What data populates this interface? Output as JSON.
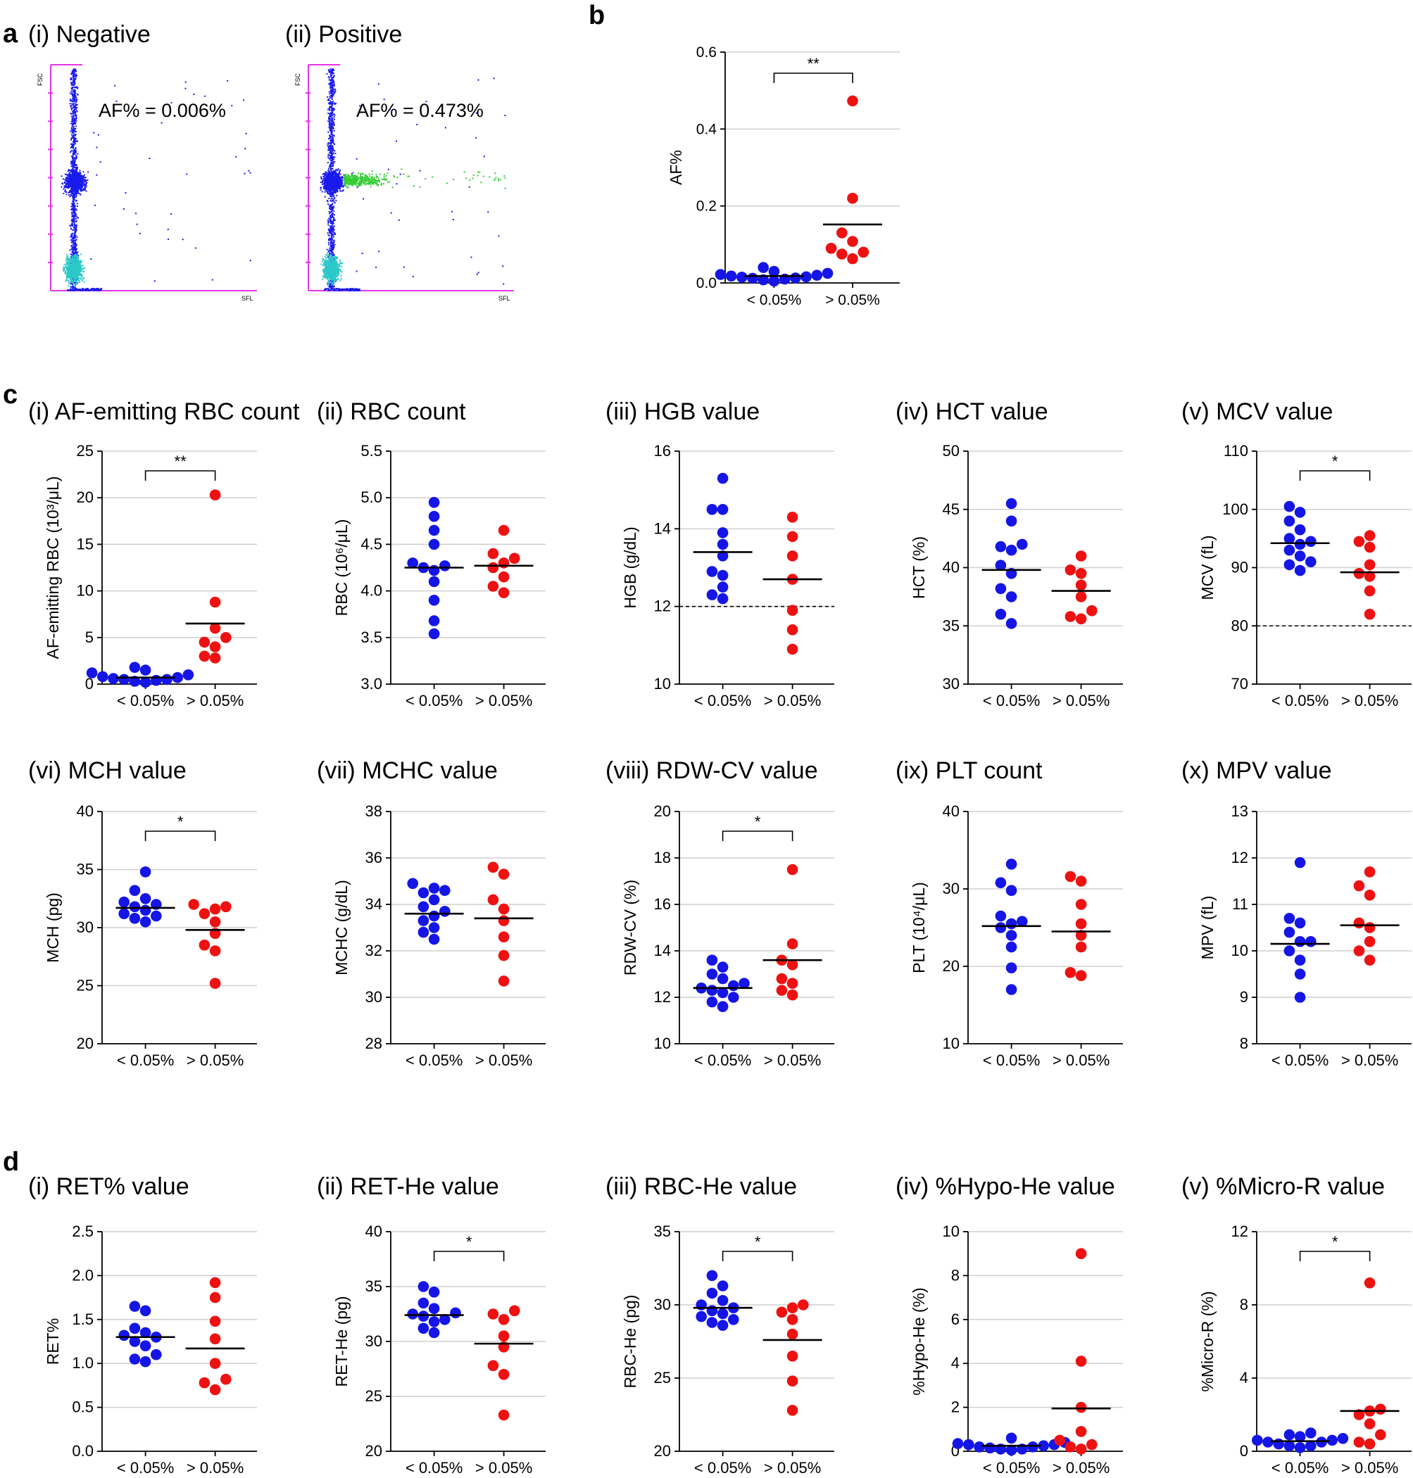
{
  "figure": {
    "panel_letters": [
      "a",
      "b",
      "c",
      "d"
    ]
  },
  "colors": {
    "group_low": "#1515e6",
    "group_high": "#ee1111",
    "cyto_blue": "#1a1aee",
    "cyto_cyan": "#2bc8c8",
    "cyto_green": "#33cc33",
    "cyto_axis": "#e633e6"
  },
  "cytograms": [
    {
      "title": "(i) Negative",
      "annotation": "AF% = 0.006%",
      "ylabel": "FSC",
      "xlabel": "SFL",
      "positive": false
    },
    {
      "title": "(ii) Positive",
      "annotation": "AF% = 0.473%",
      "ylabel": "FSC",
      "xlabel": "SFL",
      "positive": true
    }
  ],
  "chart_data": [
    {
      "id": "b",
      "type": "scatter",
      "title": "",
      "ylabel": "AF%",
      "categories": [
        "< 0.05%",
        "> 0.05%"
      ],
      "ylim": [
        0.0,
        0.6
      ],
      "yticks": [
        "0.0",
        "0.2",
        "0.4",
        "0.6"
      ],
      "tick_step": 0.2,
      "series": [
        {
          "name": "< 0.05%",
          "values": [
            0.005,
            0.008,
            0.01,
            0.012,
            0.013,
            0.015,
            0.016,
            0.018,
            0.02,
            0.022,
            0.025,
            0.03,
            0.04
          ],
          "mean": 0.018
        },
        {
          "name": "> 0.05%",
          "values": [
            0.063,
            0.075,
            0.08,
            0.09,
            0.108,
            0.13,
            0.22,
            0.473
          ],
          "mean": 0.152
        }
      ],
      "significance": "**",
      "ref_line": null
    },
    {
      "id": "c-i",
      "type": "scatter",
      "title": "(i) AF-emitting RBC count",
      "ylabel": "AF-emitting RBC (10³/μL)",
      "categories": [
        "< 0.05%",
        "> 0.05%"
      ],
      "ylim": [
        0,
        25
      ],
      "yticks": [
        "0",
        "5",
        "10",
        "15",
        "20",
        "25"
      ],
      "tick_step": 5,
      "series": [
        {
          "name": "< 0.05%",
          "values": [
            0.2,
            0.3,
            0.4,
            0.5,
            0.5,
            0.6,
            0.7,
            0.8,
            1.0,
            1.2,
            1.5,
            1.8
          ],
          "mean": 0.7
        },
        {
          "name": "> 0.05%",
          "values": [
            2.8,
            3.0,
            4.0,
            4.5,
            5.0,
            6.0,
            8.8,
            20.3
          ],
          "mean": 6.5
        }
      ],
      "significance": "**",
      "ref_line": null
    },
    {
      "id": "c-ii",
      "type": "scatter",
      "title": "(ii) RBC count",
      "ylabel": "RBC (10⁶/μL)",
      "categories": [
        "< 0.05%",
        "> 0.05%"
      ],
      "ylim": [
        3.0,
        5.5
      ],
      "yticks": [
        "3.0",
        "3.5",
        "4.0",
        "4.5",
        "5.0",
        "5.5"
      ],
      "tick_step": 0.5,
      "series": [
        {
          "name": "< 0.05%",
          "values": [
            3.54,
            3.68,
            3.9,
            4.1,
            4.22,
            4.25,
            4.27,
            4.3,
            4.5,
            4.65,
            4.8,
            4.95
          ],
          "mean": 4.25
        },
        {
          "name": "> 0.05%",
          "values": [
            3.98,
            4.05,
            4.15,
            4.25,
            4.3,
            4.35,
            4.4,
            4.65
          ],
          "mean": 4.27
        }
      ],
      "significance": "",
      "ref_line": null
    },
    {
      "id": "c-iii",
      "type": "scatter",
      "title": "(iii) HGB value",
      "ylabel": "HGB (g/dL)",
      "categories": [
        "< 0.05%",
        "> 0.05%"
      ],
      "ylim": [
        10,
        16
      ],
      "yticks": [
        "10",
        "12",
        "14",
        "16"
      ],
      "tick_step": 2,
      "series": [
        {
          "name": "< 0.05%",
          "values": [
            12.2,
            12.3,
            12.5,
            12.8,
            12.9,
            13.3,
            13.6,
            13.9,
            14.5,
            14.5,
            15.3
          ],
          "mean": 13.4
        },
        {
          "name": "> 0.05%",
          "values": [
            10.9,
            11.4,
            11.9,
            12.7,
            13.3,
            13.8,
            14.3
          ],
          "mean": 12.7
        }
      ],
      "significance": "",
      "ref_line": 12
    },
    {
      "id": "c-iv",
      "type": "scatter",
      "title": "(iv) HCT value",
      "ylabel": "HCT (%)",
      "categories": [
        "< 0.05%",
        "> 0.05%"
      ],
      "ylim": [
        30,
        50
      ],
      "yticks": [
        "30",
        "35",
        "40",
        "45",
        "50"
      ],
      "tick_step": 5,
      "series": [
        {
          "name": "< 0.05%",
          "values": [
            35.2,
            36.0,
            37.5,
            38.2,
            39.5,
            40.2,
            41.5,
            41.8,
            42.0,
            44.0,
            45.5
          ],
          "mean": 39.8
        },
        {
          "name": "> 0.05%",
          "values": [
            35.6,
            35.8,
            36.3,
            37.5,
            38.5,
            39.5,
            39.8,
            41.0
          ],
          "mean": 38.0
        }
      ],
      "significance": "",
      "ref_line": null
    },
    {
      "id": "c-v",
      "type": "scatter",
      "title": "(v) MCV value",
      "ylabel": "MCV (fL)",
      "categories": [
        "< 0.05%",
        "> 0.05%"
      ],
      "ylim": [
        70,
        110
      ],
      "yticks": [
        "70",
        "80",
        "90",
        "100",
        "110"
      ],
      "tick_step": 10,
      "series": [
        {
          "name": "< 0.05%",
          "values": [
            89.5,
            90.5,
            91.0,
            92.0,
            93.0,
            94.0,
            94.5,
            95.0,
            96.5,
            98.0,
            99.5,
            100.5
          ],
          "mean": 94.2
        },
        {
          "name": "> 0.05%",
          "values": [
            82.0,
            86.0,
            88.5,
            89.0,
            90.5,
            93.5,
            94.5,
            95.5
          ],
          "mean": 89.2
        }
      ],
      "significance": "*",
      "ref_line": 80
    },
    {
      "id": "c-vi",
      "type": "scatter",
      "title": "(vi) MCH value",
      "ylabel": "MCH (pg)",
      "categories": [
        "< 0.05%",
        "> 0.05%"
      ],
      "ylim": [
        20,
        40
      ],
      "yticks": [
        "20",
        "25",
        "30",
        "35",
        "40"
      ],
      "tick_step": 5,
      "series": [
        {
          "name": "< 0.05%",
          "values": [
            30.5,
            30.8,
            31.0,
            31.2,
            31.5,
            31.8,
            32.0,
            32.2,
            32.5,
            33.2,
            34.8
          ],
          "mean": 31.7
        },
        {
          "name": "> 0.05%",
          "values": [
            25.2,
            28.0,
            28.5,
            29.5,
            30.5,
            31.2,
            31.6,
            31.8,
            32.0
          ],
          "mean": 29.8
        }
      ],
      "significance": "*",
      "ref_line": null
    },
    {
      "id": "c-vii",
      "type": "scatter",
      "title": "(vii) MCHC value",
      "ylabel": "MCHC (g/dL)",
      "categories": [
        "< 0.05%",
        "> 0.05%"
      ],
      "ylim": [
        28,
        38
      ],
      "yticks": [
        "28",
        "30",
        "32",
        "34",
        "36",
        "38"
      ],
      "tick_step": 2,
      "series": [
        {
          "name": "< 0.05%",
          "values": [
            32.5,
            32.8,
            33.0,
            33.3,
            33.5,
            33.7,
            33.9,
            34.2,
            34.5,
            34.6,
            34.7,
            34.9
          ],
          "mean": 33.6
        },
        {
          "name": "> 0.05%",
          "values": [
            30.7,
            31.8,
            32.6,
            33.3,
            33.8,
            34.2,
            35.3,
            35.6
          ],
          "mean": 33.4
        }
      ],
      "significance": "",
      "ref_line": null
    },
    {
      "id": "c-viii",
      "type": "scatter",
      "title": "(viii) RDW-CV value",
      "ylabel": "RDW-CV (%)",
      "categories": [
        "< 0.05%",
        "> 0.05%"
      ],
      "ylim": [
        10,
        20
      ],
      "yticks": [
        "10",
        "12",
        "14",
        "16",
        "18",
        "20"
      ],
      "tick_step": 2,
      "series": [
        {
          "name": "< 0.05%",
          "values": [
            11.6,
            11.8,
            12.0,
            12.2,
            12.3,
            12.4,
            12.5,
            12.6,
            12.8,
            13.0,
            13.3,
            13.6
          ],
          "mean": 12.4
        },
        {
          "name": "> 0.05%",
          "values": [
            12.1,
            12.3,
            12.6,
            12.8,
            13.4,
            13.6,
            14.3,
            17.5
          ],
          "mean": 13.6
        }
      ],
      "significance": "*",
      "ref_line": null
    },
    {
      "id": "c-ix",
      "type": "scatter",
      "title": "(ix) PLT count",
      "ylabel": "PLT (10⁴/μL)",
      "categories": [
        "< 0.05%",
        "> 0.05%"
      ],
      "ylim": [
        10,
        40
      ],
      "yticks": [
        "10",
        "20",
        "30",
        "40"
      ],
      "tick_step": 10,
      "series": [
        {
          "name": "< 0.05%",
          "values": [
            17.0,
            19.8,
            22.5,
            24.0,
            25.0,
            25.5,
            25.8,
            26.5,
            29.8,
            30.8,
            33.2
          ],
          "mean": 25.2
        },
        {
          "name": "> 0.05%",
          "values": [
            18.8,
            19.2,
            22.5,
            24.0,
            25.5,
            28.0,
            31.0,
            31.6
          ],
          "mean": 24.5
        }
      ],
      "significance": "",
      "ref_line": null
    },
    {
      "id": "c-x",
      "type": "scatter",
      "title": "(x) MPV value",
      "ylabel": "MPV (fL)",
      "categories": [
        "< 0.05%",
        "> 0.05%"
      ],
      "ylim": [
        8,
        13
      ],
      "yticks": [
        "8",
        "9",
        "10",
        "11",
        "12",
        "13"
      ],
      "tick_step": 1,
      "series": [
        {
          "name": "< 0.05%",
          "values": [
            9.0,
            9.5,
            9.8,
            10.0,
            10.2,
            10.2,
            10.4,
            10.6,
            10.7,
            11.9
          ],
          "mean": 10.15
        },
        {
          "name": "> 0.05%",
          "values": [
            9.8,
            10.0,
            10.2,
            10.5,
            10.6,
            11.2,
            11.4,
            11.7
          ],
          "mean": 10.55
        }
      ],
      "significance": "",
      "ref_line": null
    },
    {
      "id": "d-i",
      "type": "scatter",
      "title": "(i) RET% value",
      "ylabel": "RET%",
      "categories": [
        "< 0.05%",
        "> 0.05%"
      ],
      "ylim": [
        0.0,
        2.5
      ],
      "yticks": [
        "0.0",
        "0.5",
        "1.0",
        "1.5",
        "2.0",
        "2.5"
      ],
      "tick_step": 0.5,
      "series": [
        {
          "name": "< 0.05%",
          "values": [
            1.02,
            1.05,
            1.1,
            1.2,
            1.25,
            1.3,
            1.32,
            1.35,
            1.4,
            1.6,
            1.65
          ],
          "mean": 1.3
        },
        {
          "name": "> 0.05%",
          "values": [
            0.7,
            0.78,
            0.82,
            1.0,
            1.28,
            1.48,
            1.75,
            1.92
          ],
          "mean": 1.17
        }
      ],
      "significance": "",
      "ref_line": null
    },
    {
      "id": "d-ii",
      "type": "scatter",
      "title": "(ii) RET-He value",
      "ylabel": "RET-He (pg)",
      "categories": [
        "< 0.05%",
        "> 0.05%"
      ],
      "ylim": [
        20,
        40
      ],
      "yticks": [
        "20",
        "25",
        "30",
        "35",
        "40"
      ],
      "tick_step": 5,
      "series": [
        {
          "name": "< 0.05%",
          "values": [
            30.8,
            31.2,
            31.8,
            32.0,
            32.3,
            32.5,
            32.6,
            33.0,
            33.5,
            34.5,
            35.0
          ],
          "mean": 32.4
        },
        {
          "name": "> 0.05%",
          "values": [
            23.3,
            27.0,
            27.8,
            29.5,
            30.5,
            32.0,
            32.5,
            32.8
          ],
          "mean": 29.8
        }
      ],
      "significance": "*",
      "ref_line": null
    },
    {
      "id": "d-iii",
      "type": "scatter",
      "title": "(iii) RBC-He value",
      "ylabel": "RBC-He (pg)",
      "categories": [
        "< 0.05%",
        "> 0.05%"
      ],
      "ylim": [
        20,
        35
      ],
      "yticks": [
        "20",
        "25",
        "30",
        "35"
      ],
      "tick_step": 5,
      "series": [
        {
          "name": "< 0.05%",
          "values": [
            28.6,
            28.8,
            29.0,
            29.2,
            29.4,
            29.6,
            29.8,
            30.0,
            30.3,
            30.8,
            31.3,
            32.0
          ],
          "mean": 29.8
        },
        {
          "name": "> 0.05%",
          "values": [
            22.8,
            24.8,
            26.5,
            28.0,
            29.0,
            29.5,
            29.8,
            30.0
          ],
          "mean": 27.6
        }
      ],
      "significance": "*",
      "ref_line": null
    },
    {
      "id": "d-iv",
      "type": "scatter",
      "title": "(iv) %Hypo-He value",
      "ylabel": "%Hypo-He (%)",
      "categories": [
        "< 0.05%",
        "> 0.05%"
      ],
      "ylim": [
        0,
        10
      ],
      "yticks": [
        "0",
        "2",
        "4",
        "6",
        "8",
        "10"
      ],
      "tick_step": 2,
      "series": [
        {
          "name": "< 0.05%",
          "values": [
            0.05,
            0.1,
            0.1,
            0.15,
            0.2,
            0.2,
            0.25,
            0.3,
            0.3,
            0.35,
            0.4,
            0.6
          ],
          "mean": 0.25
        },
        {
          "name": "> 0.05%",
          "values": [
            0.1,
            0.2,
            0.3,
            0.5,
            0.9,
            2.0,
            4.1,
            9.0
          ],
          "mean": 1.95
        }
      ],
      "significance": "",
      "ref_line": null
    },
    {
      "id": "d-v",
      "type": "scatter",
      "title": "(v) %Micro-R value",
      "ylabel": "%Micro-R (%)",
      "categories": [
        "< 0.05%",
        "> 0.05%"
      ],
      "ylim": [
        0,
        12
      ],
      "yticks": [
        "0",
        "4",
        "8",
        "12"
      ],
      "tick_step": 4,
      "series": [
        {
          "name": "< 0.05%",
          "values": [
            0.2,
            0.3,
            0.3,
            0.4,
            0.5,
            0.5,
            0.6,
            0.6,
            0.7,
            0.8,
            0.9,
            1.0
          ],
          "mean": 0.55
        },
        {
          "name": "> 0.05%",
          "values": [
            0.4,
            0.5,
            0.9,
            1.5,
            2.0,
            2.2,
            2.3,
            9.2
          ],
          "mean": 2.2
        }
      ],
      "significance": "*",
      "ref_line": null
    }
  ]
}
